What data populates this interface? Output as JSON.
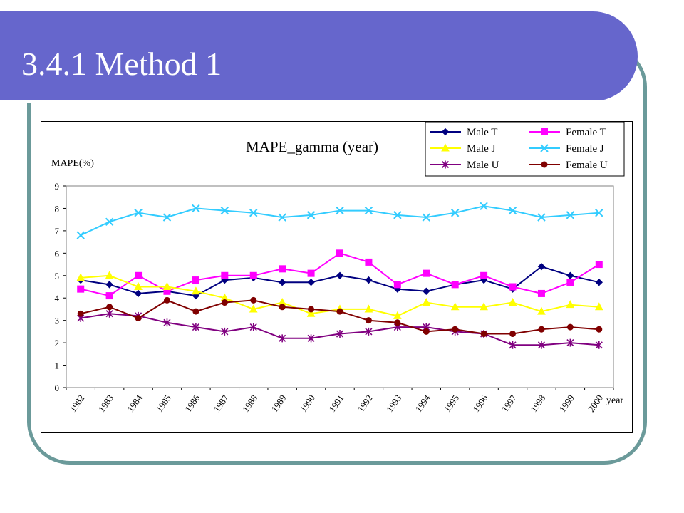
{
  "slide": {
    "title": "3.4.1 Method 1"
  },
  "chart_data": {
    "type": "line",
    "title": "MAPE_gamma (year)",
    "ylabel": "MAPE(%)",
    "xlabel": "year",
    "ylim": [
      0,
      9
    ],
    "yticks": [
      "0",
      "1",
      "2",
      "3",
      "4",
      "5",
      "6",
      "7",
      "8",
      "9"
    ],
    "grid": false,
    "legend_position": "top-right",
    "categories": [
      "1982",
      "1983",
      "1984",
      "1985",
      "1986",
      "1987",
      "1988",
      "1989",
      "1990",
      "1991",
      "1992",
      "1993",
      "1994",
      "1995",
      "1996",
      "1997",
      "1998",
      "1999",
      "2000"
    ],
    "series": [
      {
        "name": "Male T",
        "color": "#000080",
        "marker": "diamond",
        "values": [
          4.8,
          4.6,
          4.2,
          4.3,
          4.1,
          4.8,
          4.9,
          4.7,
          4.7,
          5.0,
          4.8,
          4.4,
          4.3,
          4.6,
          4.8,
          4.4,
          5.4,
          5.0,
          4.7
        ]
      },
      {
        "name": "Female T",
        "color": "#ff00ff",
        "marker": "square",
        "values": [
          4.4,
          4.1,
          5.0,
          4.3,
          4.8,
          5.0,
          5.0,
          5.3,
          5.1,
          6.0,
          5.6,
          4.6,
          5.1,
          4.6,
          5.0,
          4.5,
          4.2,
          4.7,
          5.5
        ]
      },
      {
        "name": "Male J",
        "color": "#ffff00",
        "marker": "triangle",
        "values": [
          4.9,
          5.0,
          4.5,
          4.5,
          4.3,
          4.0,
          3.5,
          3.8,
          3.3,
          3.5,
          3.5,
          3.2,
          3.8,
          3.6,
          3.6,
          3.8,
          3.4,
          3.7,
          3.6
        ]
      },
      {
        "name": "Female J",
        "color": "#33ccff",
        "marker": "x",
        "values": [
          6.8,
          7.4,
          7.8,
          7.6,
          8.0,
          7.9,
          7.8,
          7.6,
          7.7,
          7.9,
          7.9,
          7.7,
          7.6,
          7.8,
          8.1,
          7.9,
          7.6,
          7.7,
          7.8
        ]
      },
      {
        "name": "Male U",
        "color": "#800080",
        "marker": "star",
        "values": [
          3.1,
          3.3,
          3.2,
          2.9,
          2.7,
          2.5,
          2.7,
          2.2,
          2.2,
          2.4,
          2.5,
          2.7,
          2.7,
          2.5,
          2.4,
          1.9,
          1.9,
          2.0,
          1.9
        ]
      },
      {
        "name": "Female U",
        "color": "#800000",
        "marker": "circle",
        "values": [
          3.3,
          3.6,
          3.1,
          3.9,
          3.4,
          3.8,
          3.9,
          3.6,
          3.5,
          3.4,
          3.0,
          2.9,
          2.5,
          2.6,
          2.4,
          2.4,
          2.6,
          2.7,
          2.6
        ]
      }
    ]
  }
}
